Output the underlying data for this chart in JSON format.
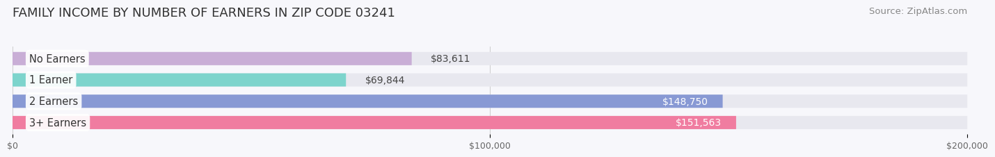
{
  "title": "FAMILY INCOME BY NUMBER OF EARNERS IN ZIP CODE 03241",
  "source": "Source: ZipAtlas.com",
  "categories": [
    "No Earners",
    "1 Earner",
    "2 Earners",
    "3+ Earners"
  ],
  "values": [
    83611,
    69844,
    148750,
    151563
  ],
  "bar_colors": [
    "#c9aed6",
    "#7dd4cc",
    "#8899d4",
    "#f07ca0"
  ],
  "bar_bg_color": "#e8e8ef",
  "xlim": [
    0,
    200000
  ],
  "xtick_labels": [
    "$0",
    "$100,000",
    "$200,000"
  ],
  "xtick_vals": [
    0,
    100000,
    200000
  ],
  "value_labels": [
    "$83,611",
    "$69,844",
    "$148,750",
    "$151,563"
  ],
  "label_colors_inside": [
    "#555555",
    "#555555",
    "#ffffff",
    "#ffffff"
  ],
  "background_color": "#f7f7fb",
  "title_fontsize": 13,
  "source_fontsize": 9.5,
  "bar_label_fontsize": 10,
  "category_fontsize": 10.5,
  "bar_height": 0.62,
  "bar_gap": 1.0
}
